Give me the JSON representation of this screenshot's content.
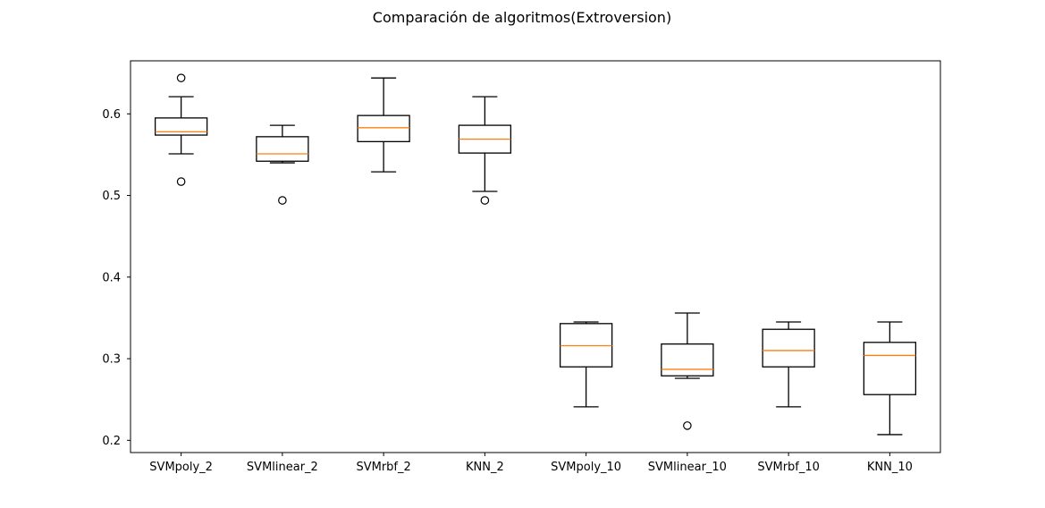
{
  "chart_data": {
    "type": "box",
    "title": "Comparación de algoritmos(Extroversion)",
    "xlabel": "",
    "ylabel": "",
    "ylim": [
      0.185,
      0.665
    ],
    "yticks": [
      0.2,
      0.3,
      0.4,
      0.5,
      0.6
    ],
    "ytick_labels": [
      "0.2",
      "0.3",
      "0.4",
      "0.5",
      "0.6"
    ],
    "grid": false,
    "box_color": "#000000",
    "median_color": "#ff7f0e",
    "categories": [
      "SVMpoly_2",
      "SVMlinear_2",
      "SVMrbf_2",
      "KNN_2",
      "SVMpoly_10",
      "SVMlinear_10",
      "SVMrbf_10",
      "KNN_10"
    ],
    "boxes": [
      {
        "label": "SVMpoly_2",
        "whislo": 0.551,
        "q1": 0.574,
        "med": 0.578,
        "q3": 0.595,
        "whishi": 0.621,
        "fliers": [
          0.644,
          0.517
        ]
      },
      {
        "label": "SVMlinear_2",
        "whislo": 0.54,
        "q1": 0.542,
        "med": 0.551,
        "q3": 0.572,
        "whishi": 0.586,
        "fliers": [
          0.494
        ]
      },
      {
        "label": "SVMrbf_2",
        "whislo": 0.529,
        "q1": 0.566,
        "med": 0.583,
        "q3": 0.598,
        "whishi": 0.644,
        "fliers": []
      },
      {
        "label": "KNN_2",
        "whislo": 0.505,
        "q1": 0.552,
        "med": 0.569,
        "q3": 0.586,
        "whishi": 0.621,
        "fliers": [
          0.494
        ]
      },
      {
        "label": "SVMpoly_10",
        "whislo": 0.241,
        "q1": 0.29,
        "med": 0.316,
        "q3": 0.343,
        "whishi": 0.345,
        "fliers": []
      },
      {
        "label": "SVMlinear_10",
        "whislo": 0.276,
        "q1": 0.279,
        "med": 0.287,
        "q3": 0.318,
        "whishi": 0.356,
        "fliers": [
          0.218
        ]
      },
      {
        "label": "SVMrbf_10",
        "whislo": 0.241,
        "q1": 0.29,
        "med": 0.31,
        "q3": 0.336,
        "whishi": 0.345,
        "fliers": []
      },
      {
        "label": "KNN_10",
        "whislo": 0.207,
        "q1": 0.256,
        "med": 0.304,
        "q3": 0.32,
        "whishi": 0.345,
        "fliers": []
      }
    ]
  }
}
